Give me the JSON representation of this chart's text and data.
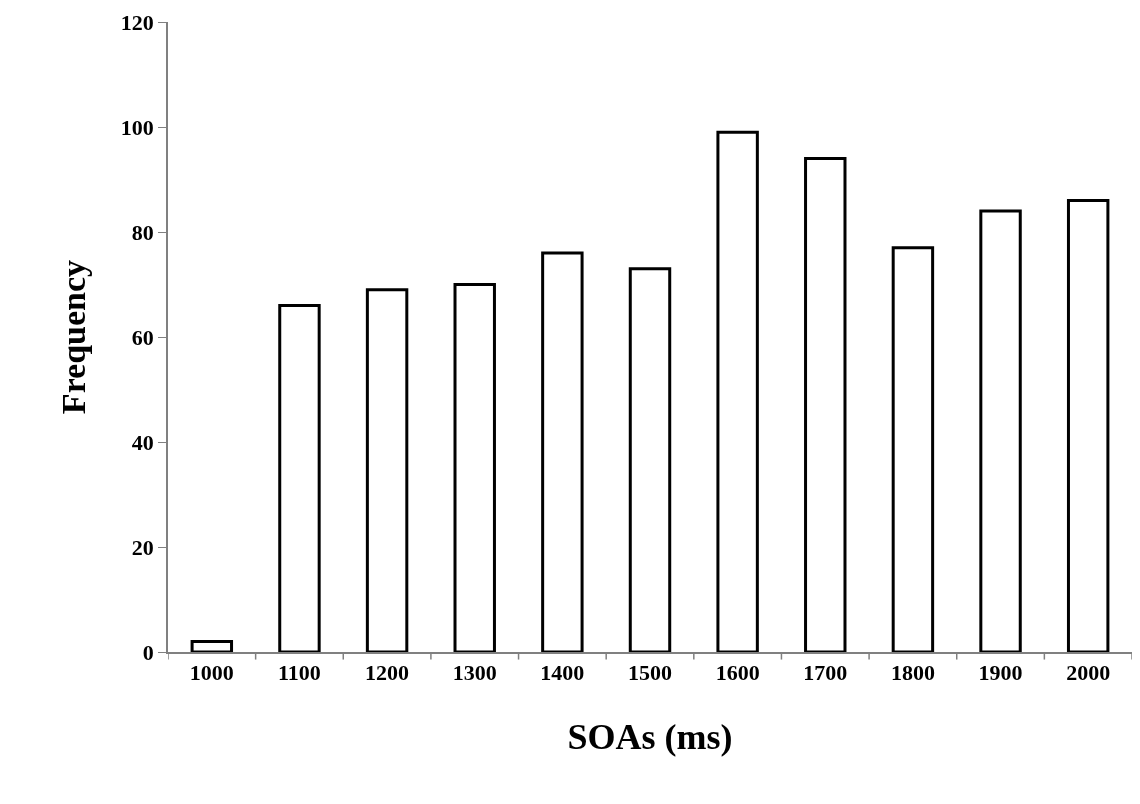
{
  "chart_data": {
    "type": "bar",
    "xlabel": "SOAs (ms)",
    "ylabel": "Frequency",
    "categories": [
      "1000",
      "1100",
      "1200",
      "1300",
      "1400",
      "1500",
      "1600",
      "1700",
      "1800",
      "1900",
      "2000"
    ],
    "values": [
      2,
      66,
      69,
      70,
      76,
      73,
      99,
      94,
      77,
      84,
      86
    ],
    "color": "#ffffff",
    "ylim": [
      0,
      120
    ],
    "yticks": [
      0,
      20,
      40,
      60,
      80,
      100,
      120
    ]
  }
}
